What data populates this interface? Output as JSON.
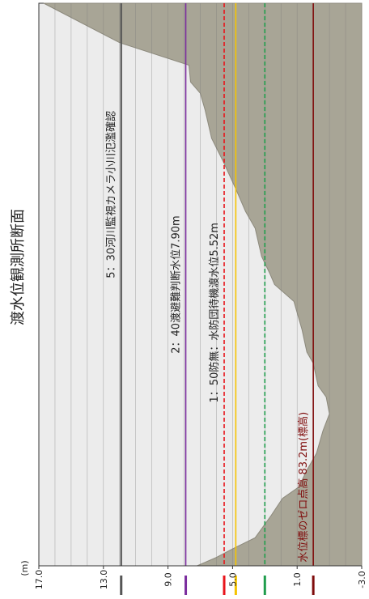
{
  "title": "渡水位観測所断面",
  "unit_label": "(m)",
  "colors": {
    "plot_bg": "#ececec",
    "terrain": "#a8a596",
    "terrain_edge": "#8c897c",
    "grid": "#7a7a7a",
    "axis": "#333333",
    "purple": "#7b2d9e",
    "red": "#e8141b",
    "yellow": "#f5c400",
    "green": "#1f9d4c",
    "darkred": "#7f0c0c",
    "current": "#555555"
  },
  "chart_data": {
    "type": "area",
    "orientation": "rotated",
    "ylim": [
      -3.0,
      17.0
    ],
    "ticks": [
      17.0,
      13.0,
      9.0,
      5.0,
      1.0,
      -3.0
    ],
    "tick_labels": [
      "17.0",
      "13.0",
      "9.0",
      "5.0",
      "1.0",
      "-3.0"
    ],
    "unit_label": "(m)",
    "grid": true,
    "reference_lines": [
      {
        "name": "5：30河川監視カメラ小川氾濫確認",
        "value": 11.9,
        "color": "#555555",
        "style": "solid",
        "thick": true
      },
      {
        "name": "2：40渡避難判断水位7.90m",
        "value": 7.9,
        "color": "#7b2d9e",
        "style": "solid"
      },
      {
        "name": "1：50防無：水防団待機渡水位5.52m",
        "value": 5.52,
        "color": "#e8141b",
        "style": "dashed"
      },
      {
        "name": "",
        "value": 4.8,
        "color": "#f5c400",
        "style": "solid"
      },
      {
        "name": "",
        "value": 3.0,
        "color": "#1f9d4c",
        "style": "dashed"
      },
      {
        "name": "水位標のゼロ点高 83.2m(標高)",
        "value": 0.0,
        "color": "#7f0c0c",
        "style": "solid"
      }
    ],
    "profile": [
      [
        0.0,
        16.7
      ],
      [
        0.07,
        12.0
      ],
      [
        0.11,
        7.7
      ],
      [
        0.14,
        7.6
      ],
      [
        0.16,
        7.0
      ],
      [
        0.19,
        6.7
      ],
      [
        0.24,
        6.3
      ],
      [
        0.28,
        5.6
      ],
      [
        0.33,
        4.8
      ],
      [
        0.37,
        4.2
      ],
      [
        0.4,
        3.6
      ],
      [
        0.45,
        3.2
      ],
      [
        0.48,
        2.7
      ],
      [
        0.5,
        2.4
      ],
      [
        0.53,
        1.2
      ],
      [
        0.58,
        0.7
      ],
      [
        0.62,
        0.4
      ],
      [
        0.64,
        0.0
      ],
      [
        0.68,
        -0.3
      ],
      [
        0.7,
        -0.8
      ],
      [
        0.73,
        -1.0
      ],
      [
        0.76,
        -0.6
      ],
      [
        0.8,
        -0.2
      ],
      [
        0.83,
        0.4
      ],
      [
        0.86,
        0.9
      ],
      [
        0.88,
        1.9
      ],
      [
        0.91,
        2.6
      ],
      [
        0.93,
        3.1
      ],
      [
        0.95,
        3.6
      ],
      [
        0.97,
        5.0
      ],
      [
        0.985,
        6.0
      ],
      [
        1.0,
        7.2
      ]
    ]
  }
}
